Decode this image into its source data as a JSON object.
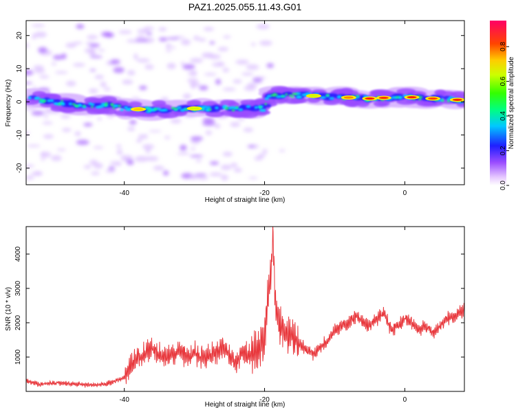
{
  "title": "PAZ1.2025.055.11.43.G01",
  "chart_data": [
    {
      "type": "heatmap",
      "xlabel": "Height of straight line (km)",
      "ylabel": "Frequency (Hz)",
      "xlim": [
        -54,
        8.5
      ],
      "ylim": [
        -25,
        24.5
      ],
      "xticks": [
        -40,
        -20,
        0
      ],
      "yticks": [
        -20,
        -10,
        0,
        10,
        20
      ],
      "ridge": [
        {
          "x": -53.5,
          "y": 1
        },
        {
          "x": -50,
          "y": 0
        },
        {
          "x": -46,
          "y": -1
        },
        {
          "x": -42,
          "y": -1
        },
        {
          "x": -40,
          "y": -2
        },
        {
          "x": -36,
          "y": -2.5
        },
        {
          "x": -32,
          "y": -2
        },
        {
          "x": -28,
          "y": -2
        },
        {
          "x": -24,
          "y": -2
        },
        {
          "x": -20,
          "y": -2
        },
        {
          "x": -19.5,
          "y": 2
        },
        {
          "x": -15,
          "y": 2
        },
        {
          "x": -10,
          "y": 1.5
        },
        {
          "x": -5,
          "y": 1
        },
        {
          "x": 0,
          "y": 1.5
        },
        {
          "x": 4,
          "y": 1
        },
        {
          "x": 8.5,
          "y": 0.5
        }
      ],
      "colorbar": {
        "label": "Normalized spectral amplitude",
        "range": [
          0,
          0.95
        ],
        "ticks": [
          0.0,
          0.2,
          0.4,
          0.6,
          0.8
        ]
      }
    },
    {
      "type": "line",
      "xlabel": "Height of straight line (km)",
      "ylabel": "SNR (10 * v/v)",
      "xlim": [
        -54,
        8.5
      ],
      "ylim": [
        0,
        4800
      ],
      "xticks": [
        -40,
        -20,
        0
      ],
      "yticks": [
        1000,
        2000,
        3000,
        4000
      ],
      "color": "#e8383d",
      "series": [
        {
          "x": [
            -54,
            -52,
            -50,
            -48,
            -46,
            -44,
            -42,
            -40,
            -39,
            -38,
            -37,
            -36,
            -35,
            -34,
            -33,
            -32,
            -31,
            -30,
            -29,
            -28,
            -27,
            -26,
            -25,
            -24,
            -23,
            -22,
            -21,
            -20,
            -19.5,
            -19,
            -18.8,
            -18.5,
            -18,
            -17,
            -16,
            -15,
            -14,
            -13,
            -12,
            -11,
            -10,
            -9,
            -8,
            -7,
            -6,
            -5,
            -4,
            -3,
            -2,
            -1,
            0,
            1,
            2,
            3,
            4,
            5,
            6,
            7,
            8,
            8.5
          ],
          "y": [
            300,
            200,
            250,
            220,
            200,
            180,
            250,
            400,
            800,
            1000,
            1100,
            1200,
            1100,
            1000,
            1100,
            1200,
            1000,
            1100,
            1000,
            1050,
            1100,
            1300,
            1000,
            900,
            1200,
            1000,
            1200,
            1500,
            2800,
            3500,
            4800,
            2500,
            1900,
            1700,
            1600,
            1400,
            1200,
            1100,
            1300,
            1500,
            1800,
            1900,
            2000,
            2200,
            2000,
            1900,
            2100,
            2300,
            1800,
            1900,
            2100,
            2000,
            1800,
            1900,
            1700,
            1900,
            2100,
            2200,
            2300,
            2400
          ]
        }
      ]
    }
  ]
}
